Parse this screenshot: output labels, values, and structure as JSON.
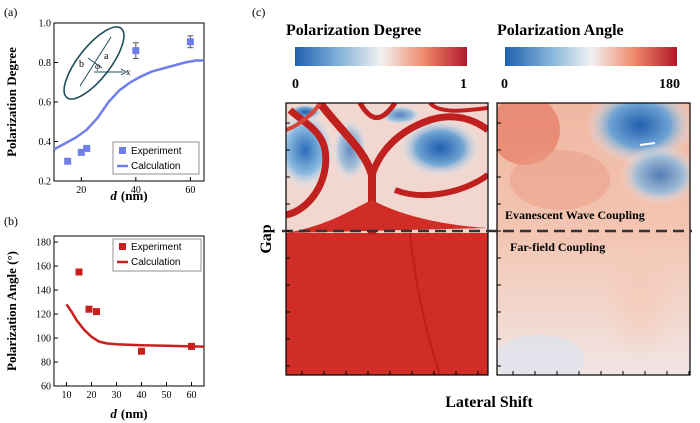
{
  "panels": {
    "a_label": "(a)",
    "b_label": "(b)",
    "c_label": "(c)"
  },
  "chart_data": [
    {
      "id": "a",
      "type": "scatter",
      "xlabel_var": "d",
      "xlabel_unit": "(nm)",
      "ylabel": "Polarization Degree",
      "xlim": [
        10,
        65
      ],
      "ylim": [
        0.2,
        1.0
      ],
      "xticks": [
        20,
        40,
        60
      ],
      "yticks": [
        0.2,
        0.4,
        0.6,
        0.8,
        1.0
      ],
      "ytick_labels": [
        "0.2",
        "0.4",
        "0.6",
        "0.8",
        "1.0"
      ],
      "legend_placement": "bottom-right",
      "series": [
        {
          "name": "Experiment",
          "kind": "points",
          "color": "#6f7ee8",
          "points": [
            [
              15,
              0.3
            ],
            [
              20,
              0.345
            ],
            [
              22,
              0.365
            ],
            [
              40,
              0.86
            ],
            [
              60,
              0.905
            ]
          ],
          "errors": [
            0,
            0,
            0,
            0.04,
            0.03
          ]
        },
        {
          "name": "Calculation",
          "kind": "line",
          "color": "#6f7ee8",
          "points": [
            [
              10,
              0.36
            ],
            [
              14,
              0.39
            ],
            [
              18,
              0.42
            ],
            [
              22,
              0.46
            ],
            [
              26,
              0.52
            ],
            [
              30,
              0.6
            ],
            [
              34,
              0.66
            ],
            [
              38,
              0.7
            ],
            [
              42,
              0.73
            ],
            [
              46,
              0.755
            ],
            [
              50,
              0.77
            ],
            [
              54,
              0.785
            ],
            [
              58,
              0.8
            ],
            [
              62,
              0.81
            ],
            [
              65,
              0.81
            ]
          ]
        }
      ],
      "inset_labels": {
        "a": "a",
        "b": "b",
        "phi": "φ",
        "x": "x"
      }
    },
    {
      "id": "b",
      "type": "scatter",
      "xlabel_var": "d",
      "xlabel_unit": "(nm)",
      "ylabel": "Polarization Angle (°)",
      "xlim": [
        5,
        65
      ],
      "ylim": [
        60,
        185
      ],
      "xticks": [
        10,
        20,
        30,
        40,
        50,
        60
      ],
      "yticks": [
        60,
        80,
        100,
        120,
        140,
        160,
        180
      ],
      "legend_placement": "top-right",
      "series": [
        {
          "name": "Experiment",
          "kind": "points",
          "color": "#c8201e",
          "points": [
            [
              15,
              155
            ],
            [
              19,
              124
            ],
            [
              22,
              122
            ],
            [
              40,
              89
            ],
            [
              60,
              93
            ]
          ]
        },
        {
          "name": "Calculation",
          "kind": "line",
          "color": "#c8201e",
          "points": [
            [
              10,
              128
            ],
            [
              12,
              122
            ],
            [
              14,
              115
            ],
            [
              17,
              107
            ],
            [
              20,
              101
            ],
            [
              23,
              97
            ],
            [
              26,
              95.5
            ],
            [
              30,
              94.8
            ],
            [
              35,
              94.3
            ],
            [
              40,
              94
            ],
            [
              50,
              93.5
            ],
            [
              60,
              93
            ],
            [
              65,
              92.8
            ]
          ]
        }
      ]
    },
    {
      "id": "c",
      "type": "heatmap",
      "xlabel": "Lateral Shift",
      "ylabel": "Gap",
      "maps": [
        {
          "title": "Polarization Degree",
          "range": [
            0,
            1
          ],
          "min_label": "0",
          "max_label": "1"
        },
        {
          "title": "Polarization Angle",
          "range": [
            0,
            180
          ],
          "min_label": "0",
          "max_label": "180"
        }
      ],
      "regions": {
        "upper": "Evanescent Wave Coupling",
        "lower": "Far-field Coupling"
      },
      "colors": {
        "low": "#1f5fae",
        "mid": "#f2f2f2",
        "high": "#b2182b"
      }
    }
  ]
}
